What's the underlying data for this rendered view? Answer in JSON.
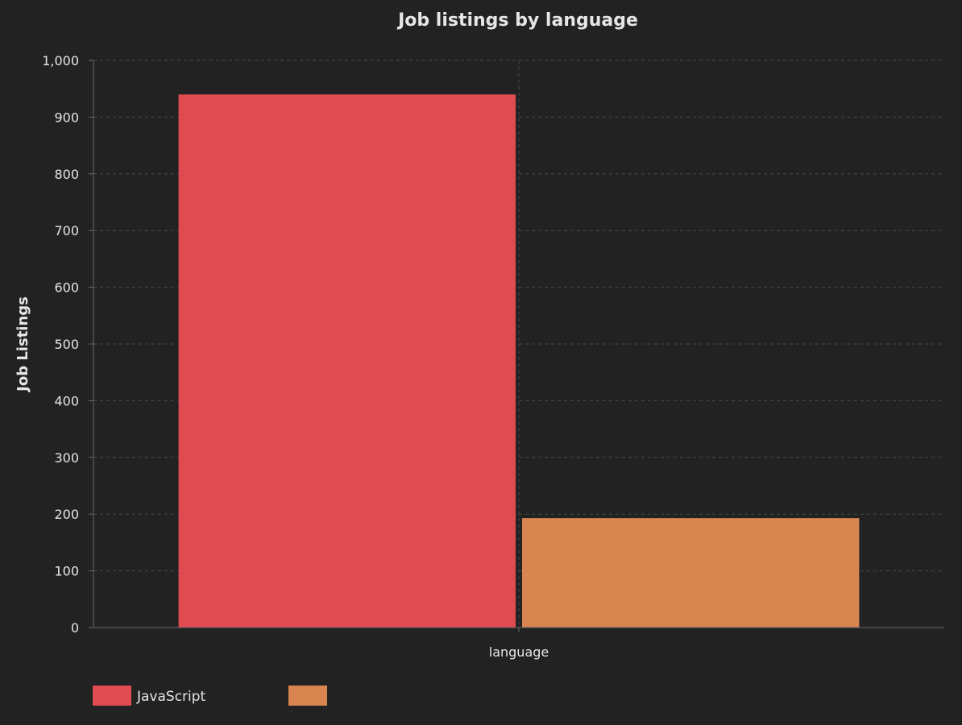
{
  "chart_data": {
    "type": "bar",
    "title": "Job listings by language",
    "xlabel": "",
    "ylabel": "Job Listings",
    "categories": [
      "language"
    ],
    "ylim": [
      0,
      1000
    ],
    "yticks": [
      0,
      100,
      200,
      300,
      400,
      500,
      600,
      700,
      800,
      900,
      1000
    ],
    "ytick_labels": [
      "0",
      "100",
      "200",
      "300",
      "400",
      "500",
      "600",
      "700",
      "800",
      "900",
      "1,000"
    ],
    "grid": true,
    "legend_position": "bottom-left",
    "series": [
      {
        "name": "JavaScript",
        "values": [
          940
        ],
        "color": "#e04b51"
      },
      {
        "name": "",
        "values": [
          193
        ],
        "color": "#d8854f"
      }
    ]
  }
}
